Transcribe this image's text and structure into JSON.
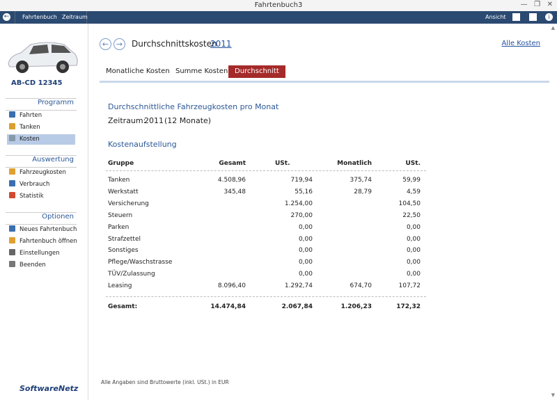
{
  "window": {
    "title": "Fahrtenbuch3"
  },
  "toolbar": {
    "items": [
      "Fahrtenbuch",
      "Zeitraum"
    ],
    "right": "Ansicht"
  },
  "sidebar": {
    "plate": "AB-CD 12345",
    "sections": [
      {
        "title": "Programm",
        "items": [
          "Fahrten",
          "Tanken",
          "Kosten"
        ]
      },
      {
        "title": "Auswertung",
        "items": [
          "Fahrzeugkosten",
          "Verbrauch",
          "Statistik"
        ]
      },
      {
        "title": "Optionen",
        "items": [
          "Neues Fahrtenbuch",
          "Fahrtenbuch öffnen",
          "Einstellungen",
          "Beenden"
        ]
      }
    ],
    "logo": "SoftwareNetz"
  },
  "header": {
    "title": "Durchschnittskosten",
    "year": "2011",
    "link": "Alle Kosten"
  },
  "tabs": [
    "Monatliche Kosten",
    "Summe Kosten",
    "Durchschnitt"
  ],
  "report": {
    "heading": "Durchschnittliche Fahrzeugkosten pro Monat",
    "period_label": "Zeitraum:",
    "period": "2011",
    "months": "(12 Monate)",
    "section": "Kostenaufstellung",
    "table": {
      "columns": [
        "Gruppe",
        "Gesamt",
        "USt.",
        "Monatlich",
        "USt."
      ],
      "rows": [
        [
          "Tanken",
          "4.508,96",
          "719,94",
          "375,74",
          "59,99"
        ],
        [
          "Werkstatt",
          "345,48",
          "55,16",
          "28,79",
          "4,59"
        ],
        [
          "Versicherung",
          null,
          "1.254,00",
          null,
          "104,50"
        ],
        [
          "Steuern",
          null,
          "270,00",
          null,
          "22,50"
        ],
        [
          "Parken",
          null,
          "0,00",
          null,
          "0,00"
        ],
        [
          "Strafzettel",
          null,
          "0,00",
          null,
          "0,00"
        ],
        [
          "Sonstiges",
          null,
          "0,00",
          null,
          "0,00"
        ],
        [
          "Pflege/Waschstrasse",
          null,
          "0,00",
          null,
          "0,00"
        ],
        [
          "TÜV/Zulassung",
          null,
          "0,00",
          null,
          "0,00"
        ],
        [
          "Leasing",
          "8.096,40",
          "1.292,74",
          "674,70",
          "107,72"
        ]
      ],
      "total": [
        "Gesamt:",
        "14.474,84",
        "2.067,84",
        "1.206,23",
        "172,32"
      ]
    }
  },
  "footer_note": "Alle Angaben sind Bruttowerte (inkl. USt.) in EUR"
}
